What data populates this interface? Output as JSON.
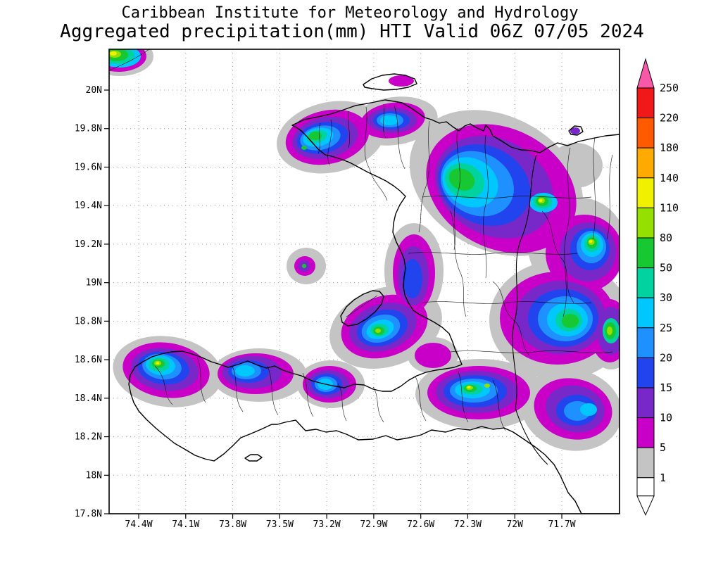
{
  "header": {
    "title_line1": "Caribbean Institute for Meteorology and Hydrology",
    "title_line2": "Aggregated precipitation(mm) HTI Valid 06Z 07/05 2024"
  },
  "chart_data": {
    "type": "heatmap",
    "subtype": "filled-contour precipitation analysis over Hispaniola (Haiti)",
    "organization": "Caribbean Institute for Meteorology and Hydrology",
    "title": "Aggregated precipitation(mm) HTI Valid 06Z 07/05 2024",
    "region_code": "HTI",
    "valid": "06Z 07/05 2024",
    "units": "mm",
    "x_axis": {
      "ticks": [
        "74.4W",
        "74.1W",
        "73.8W",
        "73.5W",
        "73.2W",
        "72.9W",
        "72.6W",
        "72.3W",
        "72W",
        "71.7W"
      ]
    },
    "y_axis": {
      "ticks": [
        "20N",
        "19.8N",
        "19.6N",
        "19.4N",
        "19.2N",
        "19N",
        "18.8N",
        "18.6N",
        "18.4N",
        "18.2N",
        "18N",
        "17.8N"
      ]
    },
    "grid_style": "dotted lat-lon graticule",
    "contour_levels_mm": [
      1,
      5,
      10,
      15,
      20,
      25,
      30,
      50,
      80,
      110,
      140,
      180,
      220,
      250
    ],
    "palette": {
      "lt1": "#ffffff",
      "1": "#c4c4c4",
      "5": "#c800c8",
      "10": "#7828c8",
      "15": "#2244ee",
      "20": "#1e90ff",
      "25": "#00c8ff",
      "30": "#00d2a0",
      "50": "#18c832",
      "80": "#96e000",
      "110": "#f0f000",
      "140": "#ffaa00",
      "180": "#ff5a00",
      "220": "#f01818",
      "gt250": "#f858a8"
    },
    "colorbar": {
      "orientation": "vertical",
      "position": "right",
      "segments": [
        {
          "fill": "gt250",
          "top_label": "",
          "arrow": "up"
        },
        {
          "fill": "220",
          "top_label": "250"
        },
        {
          "fill": "180",
          "top_label": "220"
        },
        {
          "fill": "140",
          "top_label": "180"
        },
        {
          "fill": "110",
          "top_label": "140"
        },
        {
          "fill": "80",
          "top_label": "110"
        },
        {
          "fill": "50",
          "top_label": "80"
        },
        {
          "fill": "30",
          "top_label": "50"
        },
        {
          "fill": "25",
          "top_label": "30"
        },
        {
          "fill": "20",
          "top_label": "25"
        },
        {
          "fill": "15",
          "top_label": "20"
        },
        {
          "fill": "10",
          "top_label": "15"
        },
        {
          "fill": "5",
          "top_label": "10"
        },
        {
          "fill": "1",
          "top_label": "5"
        },
        {
          "fill": "lt1",
          "top_label": "1"
        },
        {
          "fill": "lt1",
          "top_label": "",
          "arrow": "down"
        }
      ]
    }
  }
}
